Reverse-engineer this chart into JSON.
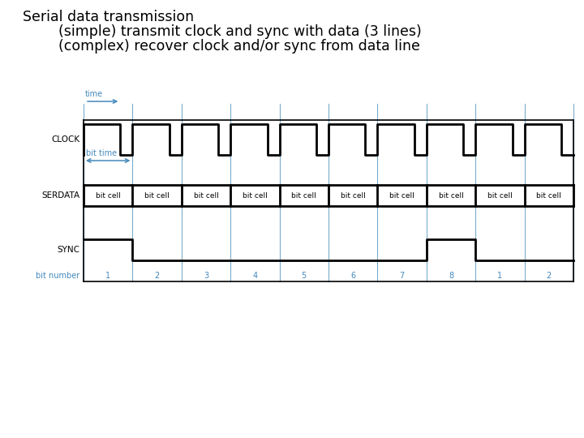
{
  "title_line1": "Serial data transmission",
  "title_line2": "        (simple) transmit clock and sync with data (3 lines)",
  "title_line3": "        (complex) recover clock and/or sync from data line",
  "title_fontsize": 12.5,
  "bg_color": "#ffffff",
  "signal_color": "#000000",
  "blue_color": "#4488bb",
  "grid_color": "#7aaccc",
  "n_bits": 10,
  "bit_numbers": [
    "1",
    "2",
    "3",
    "4",
    "5",
    "6",
    "7",
    "8",
    "1",
    "2"
  ],
  "label_fontsize": 7.5,
  "bitcell_fontsize": 6.5,
  "bitnumber_fontsize": 7.0,
  "time_fontsize": 7.0,
  "bittime_fontsize": 7.0
}
